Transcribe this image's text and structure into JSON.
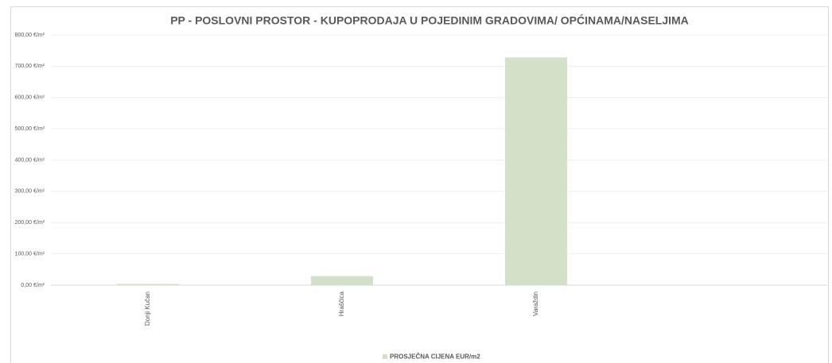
{
  "chart_data": {
    "type": "bar",
    "title": "PP - POSLOVNI PROSTOR - KUPOPRODAJA U POJEDINIM GRADOVIMA/ OPĆINAMA/NASELJIMA",
    "categories": [
      "Donji Kučan",
      "Hraščica",
      "Varaždin",
      null
    ],
    "series": [
      {
        "name": "PROSJEČNA CIJENA EUR/m2",
        "color": "#d3e1c9",
        "values": [
          4,
          29,
          728,
          null
        ]
      }
    ],
    "ylim": [
      0,
      800
    ],
    "yticks": [
      {
        "value": 0,
        "label": "0,00 €/m²"
      },
      {
        "value": 100,
        "label": "100,00 €/m²"
      },
      {
        "value": 200,
        "label": "200,00 €/m²"
      },
      {
        "value": 300,
        "label": "300,00 €/m²"
      },
      {
        "value": 400,
        "label": "400,00 €/m²"
      },
      {
        "value": 500,
        "label": "500,00 €/m²"
      },
      {
        "value": 600,
        "label": "600,00 €/m²"
      },
      {
        "value": 700,
        "label": "700,00 €/m²"
      },
      {
        "value": 800,
        "label": "800,00 €/m²"
      }
    ],
    "grid": true,
    "legend": "bottom"
  }
}
